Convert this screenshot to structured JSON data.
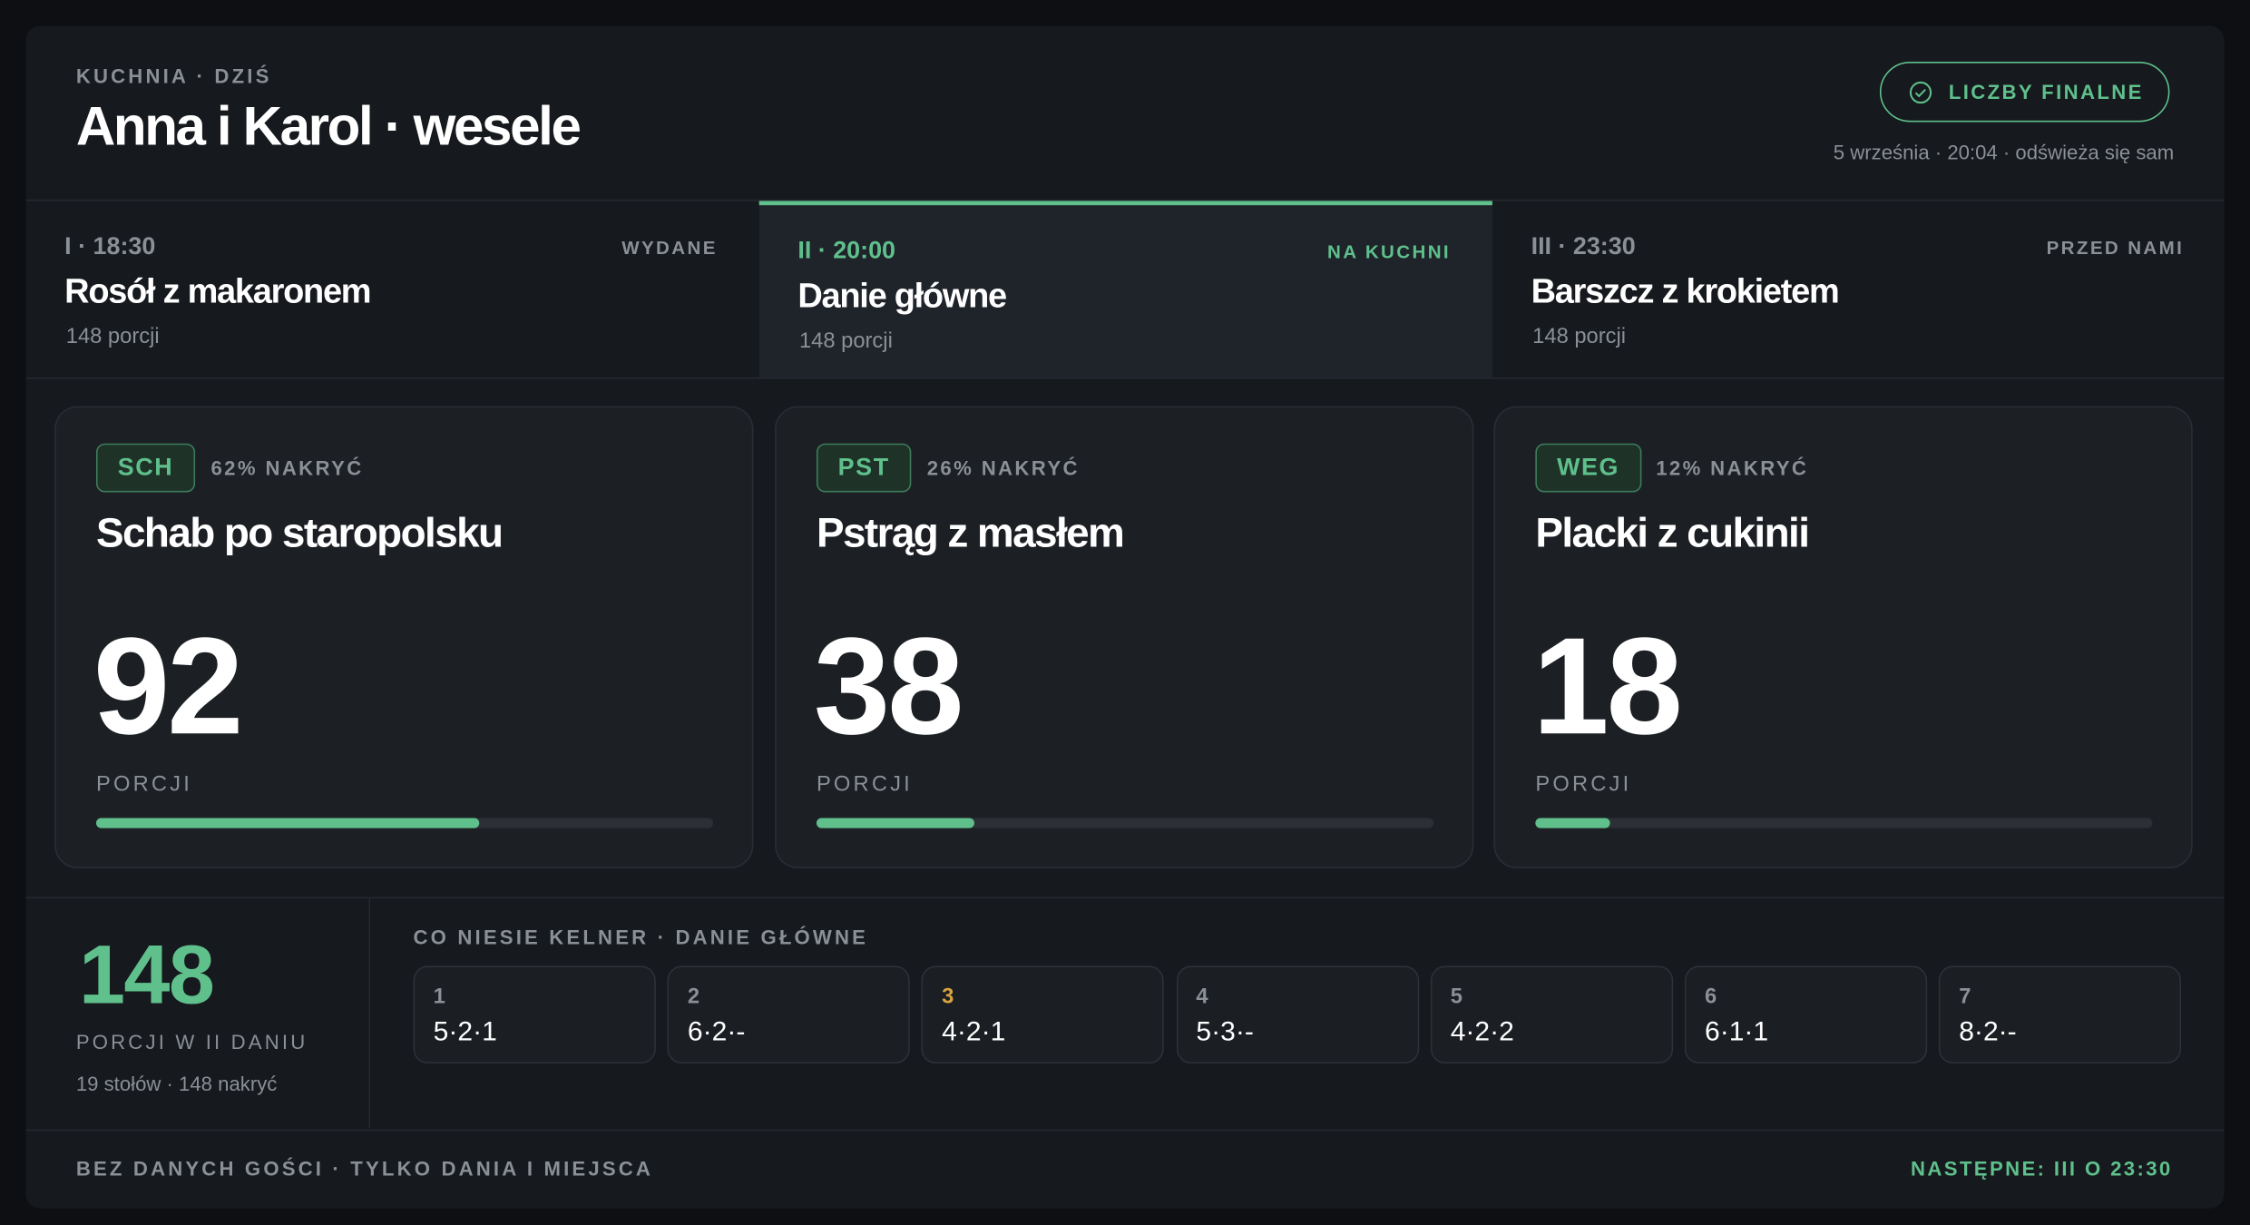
{
  "header": {
    "eyebrow": "KUCHNIA · DZIŚ",
    "title": "Anna i Karol · wesele",
    "badge": "LICZBY FINALNE",
    "updated": "5 września · 20:04 · odświeża się sam"
  },
  "courses": [
    {
      "time": "I · 18:30",
      "status": "WYDANE",
      "name": "Rosół z makaronem",
      "portions": "148 porcji"
    },
    {
      "time": "II · 20:00",
      "status": "NA KUCHNI",
      "name": "Danie główne",
      "portions": "148 porcji"
    },
    {
      "time": "III · 23:30",
      "status": "PRZED NAMI",
      "name": "Barszcz z krokietem",
      "portions": "148 porcji"
    }
  ],
  "dishes": [
    {
      "code": "SCH",
      "share": "62% NAKRYĆ",
      "name": "Schab po staropolsku",
      "portions": 92,
      "unit": "PORCJI"
    },
    {
      "code": "PST",
      "share": "26% NAKRYĆ",
      "name": "Pstrąg z masłem",
      "portions": 38,
      "unit": "PORCJI"
    },
    {
      "code": "WEG",
      "share": "12% NAKRYĆ",
      "name": "Placki z cukinii",
      "portions": 18,
      "unit": "PORCJI"
    }
  ],
  "total": {
    "portions": 148,
    "label": "PORCJI W II DANIU",
    "detail": "19 stołów · 148 nakryć"
  },
  "tables": {
    "title": "CO NIESIE KELNER · DANIE GŁÓWNE",
    "items": [
      {
        "number": "1",
        "split": "5·2·1"
      },
      {
        "number": "2",
        "split": "6·2·-"
      },
      {
        "number": "3",
        "split": "4·2·1"
      },
      {
        "number": "4",
        "split": "5·3·-"
      },
      {
        "number": "5",
        "split": "4·2·2"
      },
      {
        "number": "6",
        "split": "6·1·1"
      },
      {
        "number": "7",
        "split": "8·2·-"
      }
    ]
  },
  "footer": {
    "note": "BEZ DANYCH GOŚCI · TYLKO DANIA I MIEJSCA",
    "next": "NASTĘPNE: III O 23:30"
  }
}
